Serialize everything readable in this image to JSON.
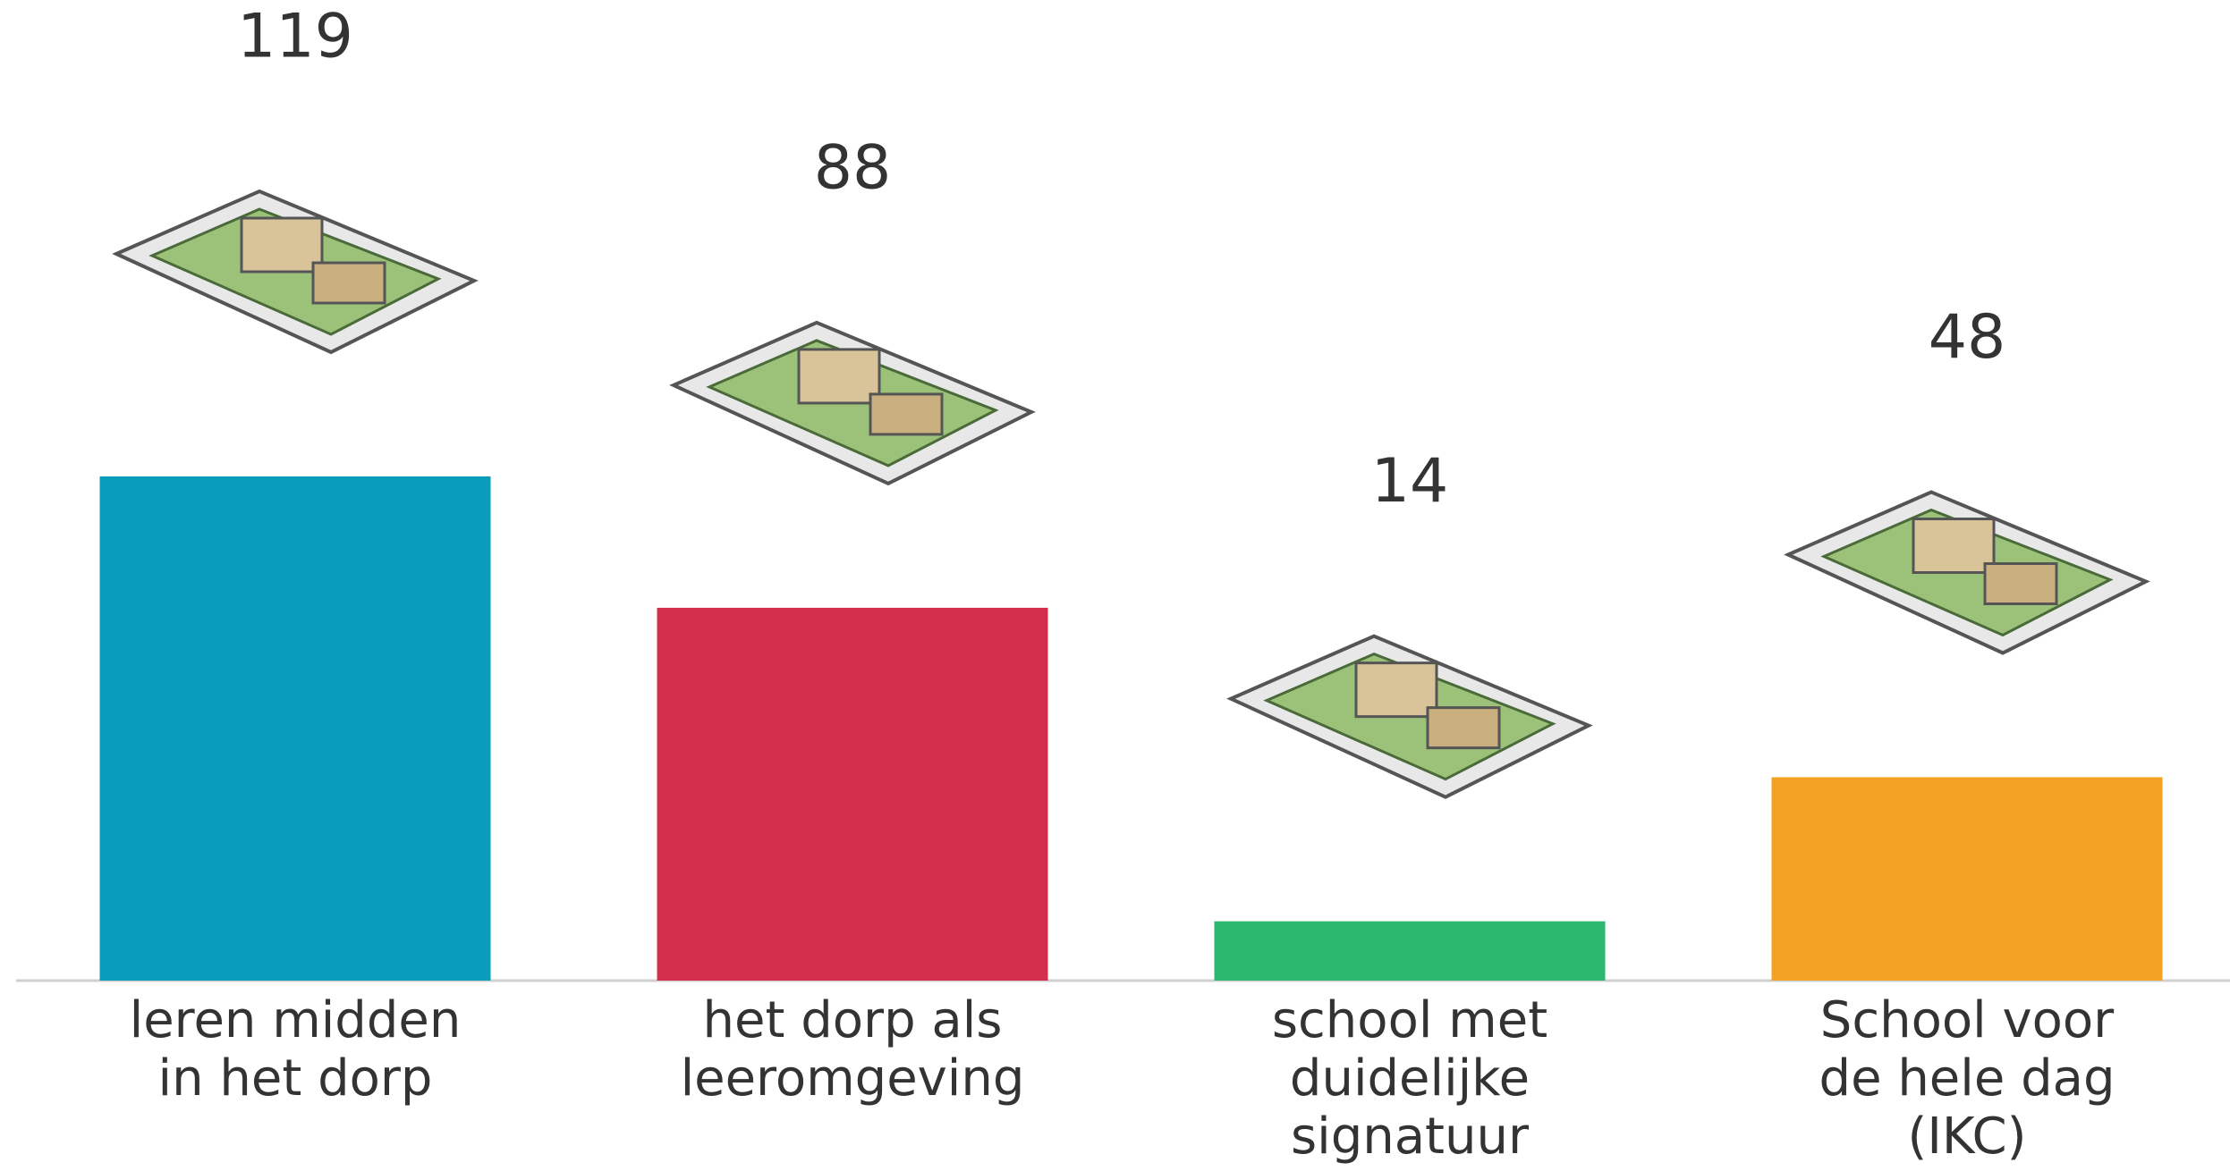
{
  "chart_data": {
    "type": "bar",
    "categories": [
      [
        "leren midden",
        "in het dorp"
      ],
      [
        "het dorp als",
        "leeromgeving"
      ],
      [
        "school met",
        "duidelijke",
        "signatuur"
      ],
      [
        "School voor",
        "de hele dag",
        "(IKC)"
      ]
    ],
    "values": [
      119,
      88,
      14,
      48
    ],
    "colors": [
      "#0a9dbb",
      "#d4304d",
      "#2cb86e",
      "#f2a122"
    ]
  }
}
